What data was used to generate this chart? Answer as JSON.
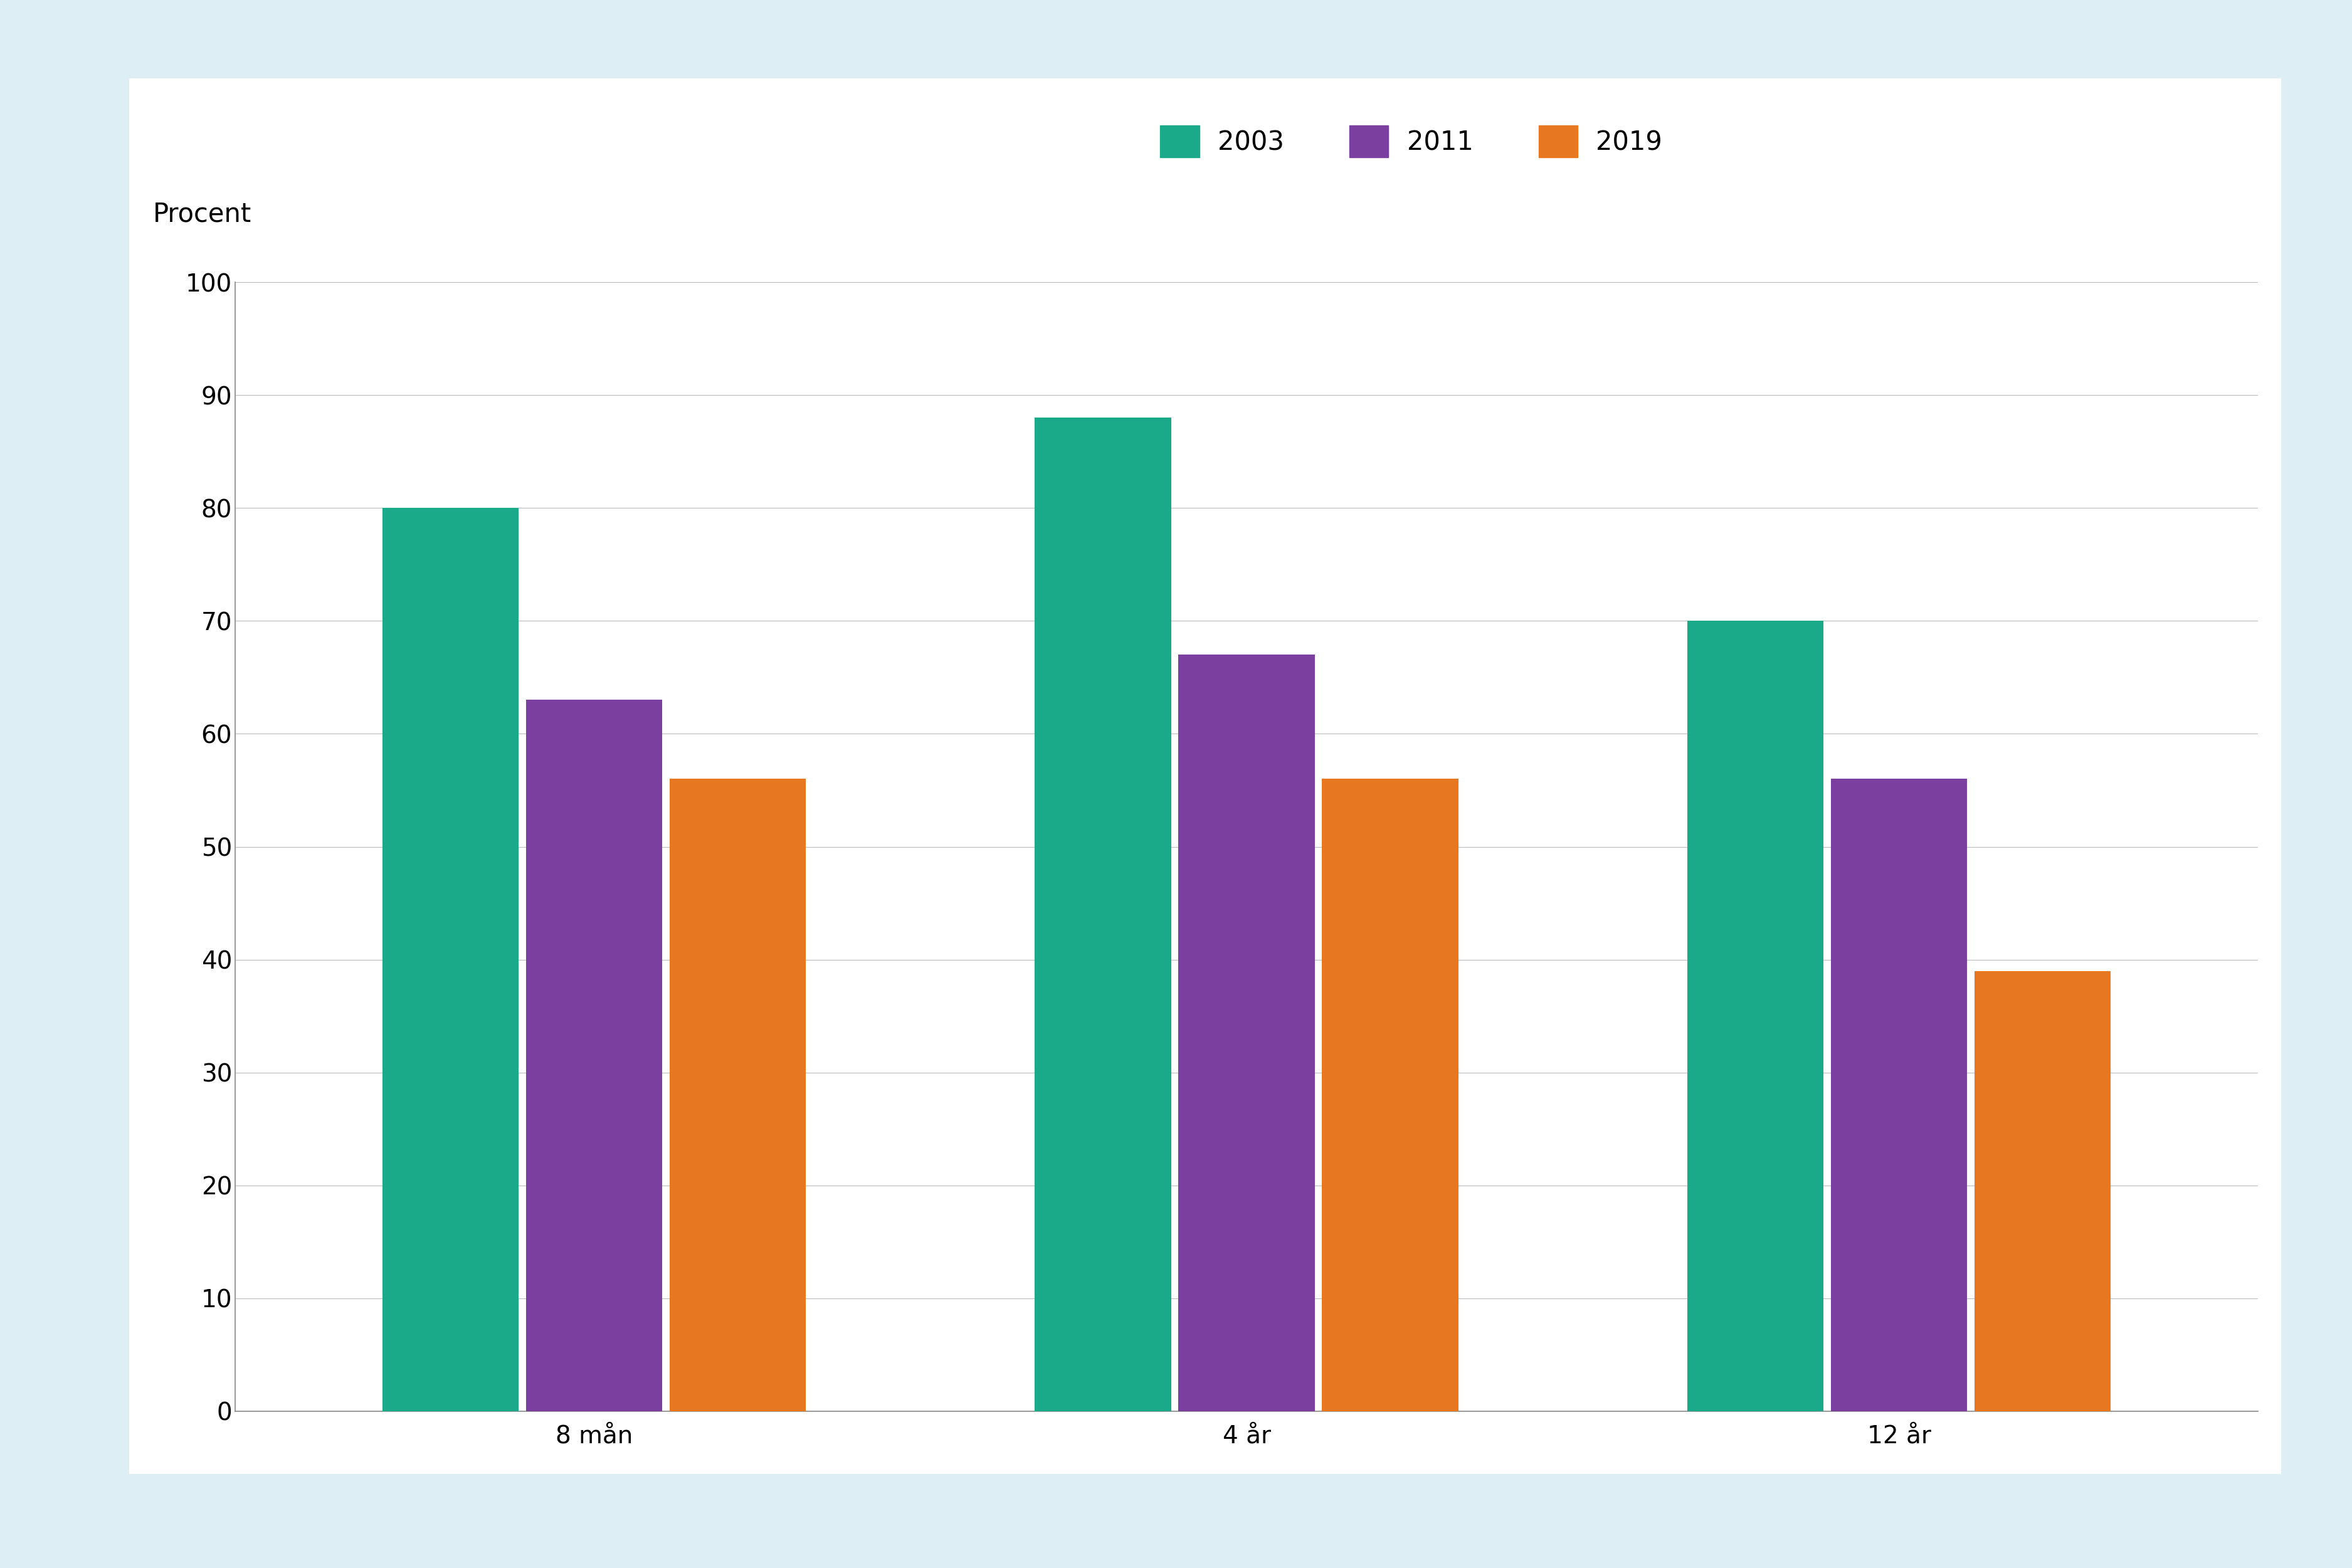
{
  "categories": [
    "8 mån",
    "4 år",
    "12 år"
  ],
  "series": {
    "2003": [
      80,
      88,
      70
    ],
    "2011": [
      63,
      67,
      56
    ],
    "2019": [
      56,
      56,
      39
    ]
  },
  "colors": {
    "2003": "#1aaa8a",
    "2011": "#7b3fa0",
    "2019": "#e87722"
  },
  "ylabel": "Procent",
  "ylim": [
    0,
    100
  ],
  "yticks": [
    0,
    10,
    20,
    30,
    40,
    50,
    60,
    70,
    80,
    90,
    100
  ],
  "legend_labels": [
    "2003",
    "2011",
    "2019"
  ],
  "background_outer": "#ddeef5",
  "background_inner": "#ffffff",
  "bar_width": 0.22,
  "label_fontsize": 30,
  "tick_fontsize": 28,
  "legend_fontsize": 30
}
